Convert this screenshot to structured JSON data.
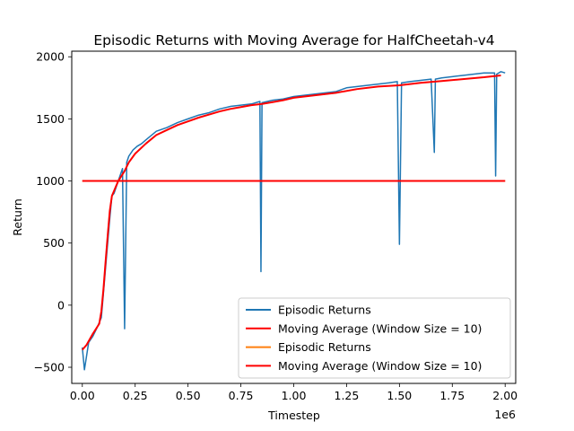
{
  "chart_data": {
    "type": "line",
    "title": "Episodic Returns with Moving Average for HalfCheetah-v4",
    "xlabel": "Timestep",
    "ylabel": "Return",
    "x_offset_label": "1e6",
    "xlim": [
      -50000,
      2050000
    ],
    "ylim": [
      -630,
      2045
    ],
    "x_ticks": [
      0,
      250000,
      500000,
      750000,
      1000000,
      1250000,
      1500000,
      1750000,
      2000000
    ],
    "x_tick_labels": [
      "0.00",
      "0.25",
      "0.50",
      "0.75",
      "1.00",
      "1.25",
      "1.50",
      "1.75",
      "2.00"
    ],
    "y_ticks": [
      -500,
      0,
      500,
      1000,
      1500,
      2000
    ],
    "y_tick_labels": [
      "−500",
      "0",
      "500",
      "1000",
      "1500",
      "2000"
    ],
    "grid": false,
    "legend_position": "lower-right",
    "legend": [
      {
        "label": "Episodic Returns",
        "color": "#1f77b4"
      },
      {
        "label": "Moving Average (Window Size = 10)",
        "color": "#ff0000"
      },
      {
        "label": "Episodic Returns",
        "color": "#ff7f0e"
      },
      {
        "label": "Moving Average (Window Size = 10)",
        "color": "#ff0000"
      }
    ],
    "series": [
      {
        "name": "Episodic Returns",
        "color": "#1f77b4",
        "x": [
          0,
          10000,
          30000,
          50000,
          70000,
          90000,
          100000,
          110000,
          120000,
          130000,
          140000,
          150000,
          160000,
          170000,
          190000,
          200000,
          210000,
          220000,
          240000,
          260000,
          280000,
          300000,
          350000,
          400000,
          450000,
          500000,
          550000,
          600000,
          650000,
          700000,
          750000,
          800000,
          840000,
          845000,
          850000,
          900000,
          950000,
          1000000,
          1050000,
          1100000,
          1150000,
          1200000,
          1250000,
          1300000,
          1350000,
          1400000,
          1450000,
          1490000,
          1500000,
          1510000,
          1550000,
          1600000,
          1650000,
          1665000,
          1670000,
          1700000,
          1750000,
          1800000,
          1850000,
          1900000,
          1950000,
          1955000,
          1960000,
          1980000,
          2000000
        ],
        "y": [
          -340,
          -520,
          -300,
          -250,
          -180,
          -100,
          100,
          300,
          500,
          700,
          880,
          900,
          950,
          1000,
          1100,
          -190,
          1150,
          1200,
          1250,
          1280,
          1300,
          1330,
          1400,
          1430,
          1470,
          1500,
          1530,
          1550,
          1580,
          1600,
          1610,
          1620,
          1640,
          270,
          1630,
          1650,
          1660,
          1680,
          1690,
          1700,
          1710,
          1720,
          1750,
          1760,
          1770,
          1780,
          1790,
          1800,
          490,
          1790,
          1800,
          1810,
          1820,
          1230,
          1820,
          1830,
          1840,
          1850,
          1860,
          1870,
          1870,
          1040,
          1860,
          1880,
          1870
        ]
      },
      {
        "name": "Moving Average (Window Size = 10)",
        "color": "#ff0000",
        "x": [
          0,
          20000,
          50000,
          80000,
          90000,
          100000,
          110000,
          120000,
          130000,
          140000,
          150000,
          170000,
          200000,
          220000,
          250000,
          300000,
          350000,
          400000,
          450000,
          500000,
          550000,
          600000,
          650000,
          700000,
          750000,
          800000,
          850000,
          900000,
          950000,
          1000000,
          1100000,
          1200000,
          1300000,
          1400000,
          1500000,
          1600000,
          1700000,
          1800000,
          1900000,
          1980000
        ],
        "y": [
          -360,
          -320,
          -230,
          -150,
          -50,
          130,
          350,
          560,
          760,
          880,
          920,
          1000,
          1080,
          1150,
          1220,
          1300,
          1370,
          1410,
          1450,
          1480,
          1510,
          1535,
          1560,
          1580,
          1595,
          1610,
          1620,
          1635,
          1650,
          1670,
          1690,
          1710,
          1740,
          1760,
          1770,
          1790,
          1805,
          1820,
          1835,
          1850
        ]
      },
      {
        "name": "Episodic Returns",
        "color": "#ff7f0e",
        "x": [
          0,
          2000000
        ],
        "y": [
          1000,
          1000
        ]
      },
      {
        "name": "Moving Average (Window Size = 10)",
        "color": "#ff0000",
        "x": [
          0,
          2000000
        ],
        "y": [
          1000,
          1000
        ]
      }
    ]
  }
}
